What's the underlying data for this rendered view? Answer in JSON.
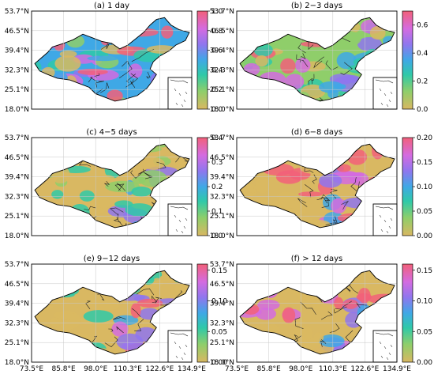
{
  "figure": {
    "lat_labels": [
      "53.7°N",
      "46.5°N",
      "39.4°N",
      "32.3°N",
      "25.1°N",
      "18.0°N"
    ],
    "lon_labels": [
      "73.5°E",
      "85.8°E",
      "98.0°E",
      "110.3°E",
      "122.6°E",
      "134.9°E"
    ],
    "colormap": [
      "#d9b862",
      "#8fce6a",
      "#2fc9a8",
      "#3fa8e6",
      "#8f76ee",
      "#d46be0",
      "#f2607a"
    ]
  },
  "panels": [
    {
      "id": "a",
      "title": "(a) 1 day",
      "cbar_ticks": [
        "1.0",
        "0.8",
        "0.6",
        "0.4",
        "0.2",
        "0.0"
      ],
      "vmax": 1.0
    },
    {
      "id": "b",
      "title": "(b) 2−3 days",
      "cbar_ticks": [
        "0.6",
        "0.4",
        "0.2",
        "0.0"
      ],
      "vmax": 0.7
    },
    {
      "id": "c",
      "title": "(c) 4−5 days",
      "cbar_ticks": [
        "0.4",
        "0.3",
        "0.2",
        "0.1",
        "0.0"
      ],
      "vmax": 0.4
    },
    {
      "id": "d",
      "title": "(d) 6−8 days",
      "cbar_ticks": [
        "0.20",
        "0.15",
        "0.10",
        "0.05",
        "0.00"
      ],
      "vmax": 0.2
    },
    {
      "id": "e",
      "title": "(e) 9−12 days",
      "cbar_ticks": [
        "0.15",
        "0.10",
        "0.05",
        "0.00"
      ],
      "vmax": 0.16
    },
    {
      "id": "f",
      "title": "(f) > 12 days",
      "cbar_ticks": [
        "0.15",
        "0.10",
        "0.05",
        "0.00"
      ],
      "vmax": 0.16
    }
  ]
}
